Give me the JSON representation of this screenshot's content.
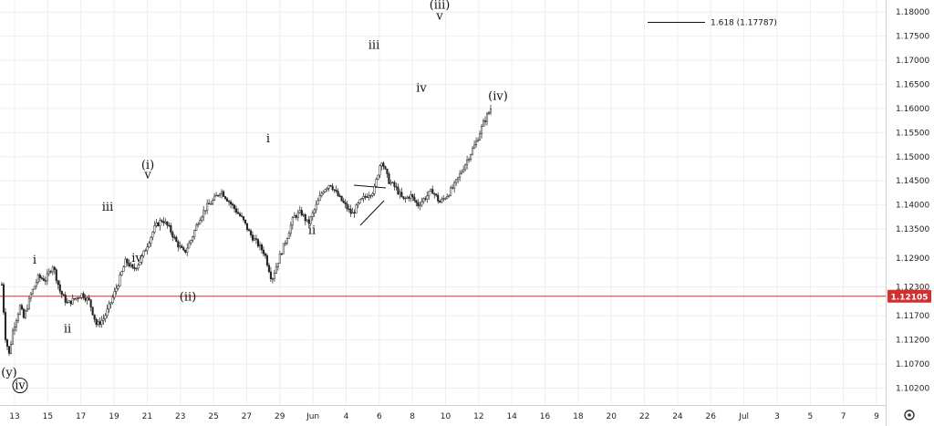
{
  "chart_data": {
    "type": "candlestick",
    "title": "",
    "xlabel": "",
    "ylabel": "",
    "ylim": [
      1.0985,
      1.1825
    ],
    "y_ticks": [
      "1.18000",
      "1.17500",
      "1.17000",
      "1.16500",
      "1.16000",
      "1.15500",
      "1.15000",
      "1.14500",
      "1.14000",
      "1.13500",
      "1.12900",
      "1.12300",
      "1.11700",
      "1.11200",
      "1.10700",
      "1.10200"
    ],
    "x_ticks": [
      "13",
      "15",
      "17",
      "19",
      "21",
      "23",
      "25",
      "27",
      "29",
      "Jun",
      "4",
      "6",
      "8",
      "10",
      "12",
      "14",
      "16",
      "18",
      "20",
      "22",
      "24",
      "26",
      "Jul",
      "3",
      "5",
      "7",
      "9"
    ],
    "current_price": {
      "value": 1.12105,
      "label": "1.12105",
      "color": "#d32f2f"
    },
    "fib_level": {
      "label": "1.618 (1.17787)",
      "value": 1.17787
    },
    "price_path": [
      [
        0,
        1.1235
      ],
      [
        1,
        1.1125
      ],
      [
        2,
        1.109
      ],
      [
        3,
        1.114
      ],
      [
        5,
        1.119
      ],
      [
        6,
        1.1165
      ],
      [
        8,
        1.1215
      ],
      [
        10,
        1.125
      ],
      [
        12,
        1.1245
      ],
      [
        14,
        1.1275
      ],
      [
        16,
        1.122
      ],
      [
        18,
        1.1195
      ],
      [
        20,
        1.1205
      ],
      [
        22,
        1.1215
      ],
      [
        24,
        1.12
      ],
      [
        26,
        1.115
      ],
      [
        28,
        1.1165
      ],
      [
        30,
        1.12
      ],
      [
        32,
        1.124
      ],
      [
        34,
        1.1285
      ],
      [
        36,
        1.1265
      ],
      [
        38,
        1.1285
      ],
      [
        40,
        1.132
      ],
      [
        42,
        1.1355
      ],
      [
        44,
        1.137
      ],
      [
        46,
        1.135
      ],
      [
        48,
        1.132
      ],
      [
        50,
        1.13
      ],
      [
        52,
        1.133
      ],
      [
        54,
        1.137
      ],
      [
        56,
        1.1395
      ],
      [
        58,
        1.141
      ],
      [
        60,
        1.143
      ],
      [
        62,
        1.141
      ],
      [
        64,
        1.139
      ],
      [
        66,
        1.137
      ],
      [
        68,
        1.134
      ],
      [
        70,
        1.132
      ],
      [
        72,
        1.13
      ],
      [
        74,
        1.1245
      ],
      [
        76,
        1.129
      ],
      [
        78,
        1.133
      ],
      [
        80,
        1.1375
      ],
      [
        82,
        1.1385
      ],
      [
        84,
        1.136
      ],
      [
        86,
        1.1395
      ],
      [
        88,
        1.143
      ],
      [
        90,
        1.1445
      ],
      [
        92,
        1.142
      ],
      [
        94,
        1.14
      ],
      [
        96,
        1.138
      ],
      [
        98,
        1.1405
      ],
      [
        100,
        1.142
      ],
      [
        102,
        1.143
      ],
      [
        104,
        1.1495
      ],
      [
        106,
        1.145
      ],
      [
        108,
        1.1435
      ],
      [
        110,
        1.141
      ],
      [
        112,
        1.142
      ],
      [
        114,
        1.14
      ],
      [
        116,
        1.1415
      ],
      [
        118,
        1.143
      ],
      [
        120,
        1.1405
      ],
      [
        122,
        1.142
      ],
      [
        124,
        1.144
      ],
      [
        126,
        1.147
      ],
      [
        128,
        1.15
      ],
      [
        130,
        1.153
      ],
      [
        132,
        1.157
      ],
      [
        134,
        1.16
      ]
    ],
    "x_domain": [
      0,
      134
    ],
    "wave_labels": [
      {
        "text": "(y)",
        "x": 2,
        "y": 1.1045
      },
      {
        "text": "iv",
        "x": 2,
        "y": 1.1018,
        "circled": true
      },
      {
        "text": "i",
        "x": 9,
        "y": 1.1278
      },
      {
        "text": "ii",
        "x": 18,
        "y": 1.1135
      },
      {
        "text": "iii",
        "x": 29,
        "y": 1.1388
      },
      {
        "text": "iv",
        "x": 37,
        "y": 1.1282
      },
      {
        "text": "(i)",
        "x": 40,
        "y": 1.1475
      },
      {
        "text": "v",
        "x": 40,
        "y": 1.1455
      },
      {
        "text": "(ii)",
        "x": 51,
        "y": 1.1202
      },
      {
        "text": "i",
        "x": 73,
        "y": 1.153
      },
      {
        "text": "ii",
        "x": 85,
        "y": 1.134
      },
      {
        "text": "iii",
        "x": 102,
        "y": 1.1724
      },
      {
        "text": "iv",
        "x": 115,
        "y": 1.1635
      },
      {
        "text": "(iv)",
        "x": 136,
        "y": 1.1618
      },
      {
        "text": "(iii)",
        "x": 120,
        "y": 1.1807
      },
      {
        "text": "v",
        "x": 120,
        "y": 1.1784
      }
    ]
  }
}
